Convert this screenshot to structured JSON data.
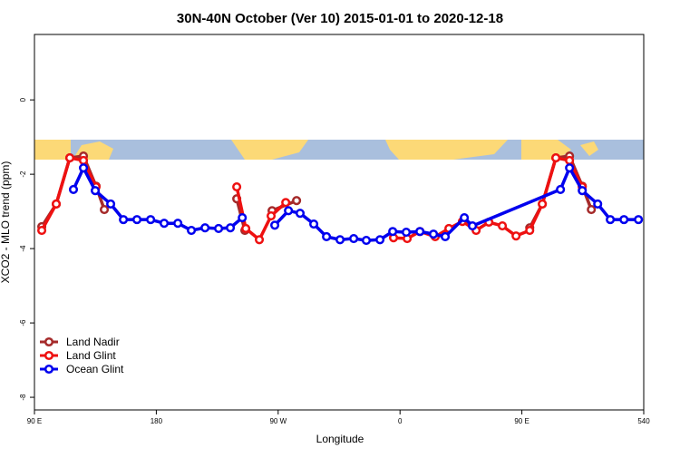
{
  "chart_data": {
    "type": "line",
    "title": "30N-40N October (Ver 10)   2015-01-01 to 2020-12-18",
    "x_label": "Longitude",
    "y_label": "XCO2 - MLO trend (ppm)",
    "xlim": [
      90,
      540
    ],
    "ylim": [
      -8.34,
      1.76
    ],
    "xticks": [
      {
        "value": 90,
        "label": "90 E"
      },
      180,
      {
        "value": 270,
        "label": "90 W"
      },
      {
        "value": 360,
        "label": "0"
      },
      {
        "value": 450,
        "label": "90 E"
      },
      540
    ],
    "yticks": [
      0,
      -2,
      -4,
      -6,
      -8
    ],
    "legend": "bottomleft",
    "series": [
      {
        "name": "Land Nadir",
        "color": "#a52a2a",
        "x": [
          95.4,
          106.1,
          116.1,
          126.2,
          135.5,
          141.6,
          null,
          239.4,
          245.4,
          null,
          265.5,
          283.6,
          null,
          455.8,
          465.1,
          475.1,
          485.2,
          494.6,
          501.3
        ],
        "values": [
          -3.41,
          -2.8,
          -1.56,
          -1.51,
          -2.32,
          -2.95,
          null,
          -2.66,
          -3.51,
          null,
          -2.98,
          -2.71,
          null,
          -3.44,
          -2.8,
          -1.56,
          -1.51,
          -2.32,
          -2.95
        ]
      },
      {
        "name": "Land Glint",
        "color": "#ee1111",
        "x": [
          95.4,
          106.1,
          116.1,
          126.2,
          135.5,
          null,
          239.4,
          246.1,
          256.1,
          264.8,
          275.6,
          null,
          355.2,
          365.3,
          374.7,
          386.0,
          396.1,
          406.1,
          416.2,
          425.6,
          435.6,
          445.7,
          455.8,
          465.1,
          475.1,
          485.2,
          494.6
        ],
        "values": [
          -3.51,
          -2.8,
          -1.56,
          -1.63,
          -2.34,
          null,
          -2.34,
          -3.46,
          -3.76,
          -3.12,
          -2.76,
          null,
          -3.71,
          -3.73,
          -3.54,
          -3.68,
          -3.46,
          -3.27,
          -3.51,
          -3.29,
          -3.39,
          -3.66,
          -3.51,
          -2.8,
          -1.56,
          -1.63,
          -2.34
        ]
      },
      {
        "name": "Ocean Glint",
        "color": "#0000ee",
        "x": [
          118.8,
          126.2,
          134.9,
          146.3,
          155.7,
          165.7,
          175.8,
          185.8,
          195.9,
          205.9,
          216.0,
          226.0,
          234.7,
          243.5,
          null,
          267.5,
          277.6,
          286.2,
          296.3,
          305.7,
          315.7,
          325.8,
          335.1,
          345.2,
          354.6,
          364.6,
          374.7,
          384.7,
          393.4,
          407.5,
          413.5,
          478.5,
          485.2,
          494.6,
          506.0,
          515.3,
          525.4,
          536.1
        ],
        "values": [
          -2.41,
          -1.83,
          -2.44,
          -2.8,
          -3.22,
          -3.22,
          -3.22,
          -3.32,
          -3.32,
          -3.51,
          -3.44,
          -3.46,
          -3.44,
          -3.17,
          null,
          -3.37,
          -2.98,
          -3.05,
          -3.34,
          -3.68,
          -3.76,
          -3.73,
          -3.78,
          -3.76,
          -3.54,
          -3.56,
          -3.54,
          -3.61,
          -3.68,
          -3.17,
          -3.39,
          -2.41,
          -1.83,
          -2.44,
          -2.8,
          -3.22,
          -3.22,
          -3.22
        ]
      }
    ]
  }
}
